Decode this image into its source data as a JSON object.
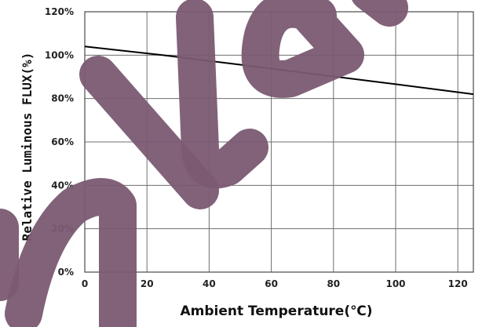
{
  "chart_data": {
    "type": "line",
    "xlabel": "Ambient Temperature(℃)",
    "ylabel": "Relative Luminous FLUX(%)",
    "x_ticks": [
      0,
      20,
      40,
      60,
      80,
      100,
      120
    ],
    "y_ticks": [
      "0%",
      "20%",
      "40%",
      "60%",
      "80%",
      "100%",
      "120%"
    ],
    "xlim": [
      0,
      125
    ],
    "ylim": [
      0,
      120
    ],
    "grid": true,
    "series": [
      {
        "x": [
          0,
          25,
          50,
          75,
          100,
          125
        ],
        "y": [
          104,
          100,
          95.6,
          91.1,
          86.6,
          82
        ]
      }
    ],
    "colors": {
      "line": "#000000",
      "grid": "#6e6e6e",
      "watermark": "#7a5a72"
    }
  }
}
